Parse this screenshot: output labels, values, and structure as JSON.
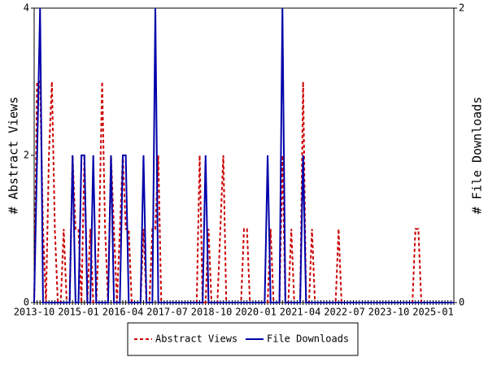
{
  "chart_data": {
    "type": "line",
    "x": [
      "2013-10",
      "2013-11",
      "2013-12",
      "2014-01",
      "2014-02",
      "2014-03",
      "2014-04",
      "2014-05",
      "2014-06",
      "2014-07",
      "2014-08",
      "2014-09",
      "2014-10",
      "2014-11",
      "2014-12",
      "2015-01",
      "2015-02",
      "2015-03",
      "2015-04",
      "2015-05",
      "2015-06",
      "2015-07",
      "2015-08",
      "2015-09",
      "2015-10",
      "2015-11",
      "2015-12",
      "2016-01",
      "2016-02",
      "2016-03",
      "2016-04",
      "2016-05",
      "2016-06",
      "2016-07",
      "2016-08",
      "2016-09",
      "2016-10",
      "2016-11",
      "2016-12",
      "2017-01",
      "2017-02",
      "2017-03",
      "2017-04",
      "2017-05",
      "2017-06",
      "2017-07",
      "2017-08",
      "2017-09",
      "2017-10",
      "2017-11",
      "2017-12",
      "2018-01",
      "2018-02",
      "2018-03",
      "2018-04",
      "2018-05",
      "2018-06",
      "2018-07",
      "2018-08",
      "2018-09",
      "2018-10",
      "2018-11",
      "2018-12",
      "2019-01",
      "2019-02",
      "2019-03",
      "2019-04",
      "2019-05",
      "2019-06",
      "2019-07",
      "2019-08",
      "2019-09",
      "2019-10",
      "2019-11",
      "2019-12",
      "2020-01",
      "2020-02",
      "2020-03",
      "2020-04",
      "2020-05",
      "2020-06",
      "2020-07",
      "2020-08",
      "2020-09",
      "2020-10",
      "2020-11",
      "2020-12",
      "2021-01",
      "2021-02",
      "2021-03",
      "2021-04",
      "2021-05",
      "2021-06",
      "2021-07",
      "2021-08",
      "2021-09",
      "2021-10",
      "2021-11",
      "2021-12",
      "2022-01",
      "2022-02",
      "2022-03",
      "2022-04",
      "2022-05",
      "2022-06",
      "2022-07",
      "2022-08",
      "2022-09",
      "2022-10",
      "2022-11",
      "2022-12",
      "2023-01",
      "2023-02",
      "2023-03",
      "2023-04",
      "2023-05",
      "2023-06",
      "2023-07",
      "2023-08",
      "2023-09",
      "2023-10",
      "2023-11",
      "2023-12",
      "2024-01",
      "2024-02",
      "2024-03",
      "2024-04",
      "2024-05",
      "2024-06",
      "2024-07",
      "2024-08",
      "2024-09",
      "2024-10",
      "2024-11",
      "2024-12",
      "2025-01",
      "2025-02",
      "2025-03",
      "2025-04",
      "2025-05",
      "2025-06",
      "2025-07",
      "2025-08"
    ],
    "xticks": [
      "2013-10",
      "2015-01",
      "2016-04",
      "2017-07",
      "2018-10",
      "2020-01",
      "2021-04",
      "2022-07",
      "2023-10",
      "2025-01"
    ],
    "y_label": "# Abstract Views",
    "y2_label": "# File Downloads",
    "ylim": [
      0,
      4
    ],
    "yticks": [
      0,
      2,
      4
    ],
    "y2lim": [
      0,
      2
    ],
    "y2ticks": [
      0,
      2
    ],
    "series": [
      {
        "name": "Abstract Views",
        "color": "#cc0000",
        "dashed": true,
        "values": [
          0,
          3,
          3,
          1,
          0,
          2,
          3,
          1,
          0,
          0,
          1,
          0,
          0,
          2,
          1,
          1,
          0,
          2,
          0,
          1,
          0,
          0,
          1,
          3,
          1,
          0,
          2,
          1,
          0,
          1,
          2,
          1,
          1,
          0,
          0,
          0,
          0,
          1,
          0,
          0,
          1,
          1,
          2,
          0,
          0,
          0,
          0,
          0,
          0,
          0,
          0,
          0,
          0,
          0,
          0,
          0,
          2,
          0,
          0,
          1,
          0,
          0,
          0,
          1,
          2,
          0,
          0,
          0,
          0,
          0,
          0,
          1,
          1,
          0,
          0,
          0,
          0,
          0,
          0,
          0,
          1,
          0,
          0,
          0,
          2,
          0,
          0,
          1,
          0,
          0,
          0,
          3,
          0,
          0,
          1,
          0,
          0,
          0,
          0,
          0,
          0,
          0,
          0,
          1,
          0,
          0,
          0,
          0,
          0,
          0,
          0,
          0,
          0,
          0,
          0,
          0,
          0,
          0,
          0,
          0,
          0,
          0,
          0,
          0,
          0,
          0,
          0,
          0,
          0,
          1,
          1,
          0,
          0,
          0,
          0,
          0,
          0,
          0,
          0,
          0,
          0,
          0,
          0
        ]
      },
      {
        "name": "File Downloads",
        "color": "#0000aa",
        "axis": "y2",
        "values": [
          0,
          1,
          2,
          0,
          0,
          0,
          0,
          0,
          0,
          0,
          0,
          0,
          0,
          1,
          0,
          0,
          1,
          1,
          0,
          0,
          1,
          0,
          0,
          0,
          0,
          0,
          1,
          0,
          0,
          0,
          1,
          1,
          0,
          0,
          0,
          0,
          0,
          1,
          0,
          0,
          0,
          2,
          0,
          0,
          0,
          0,
          0,
          0,
          0,
          0,
          0,
          0,
          0,
          0,
          0,
          0,
          0,
          0,
          1,
          0,
          0,
          0,
          0,
          0,
          0,
          0,
          0,
          0,
          0,
          0,
          0,
          0,
          0,
          0,
          0,
          0,
          0,
          0,
          0,
          1,
          0,
          0,
          0,
          0,
          2,
          0,
          0,
          0,
          0,
          0,
          0,
          1,
          0,
          0,
          0,
          0,
          0,
          0,
          0,
          0,
          0,
          0,
          0,
          0,
          0,
          0,
          0,
          0,
          0,
          0,
          0,
          0,
          0,
          0,
          0,
          0,
          0,
          0,
          0,
          0,
          0,
          0,
          0,
          0,
          0,
          0,
          0,
          0,
          0,
          0,
          0,
          0,
          0,
          0,
          0,
          0,
          0,
          0,
          0,
          0,
          0,
          0,
          0
        ]
      }
    ]
  }
}
